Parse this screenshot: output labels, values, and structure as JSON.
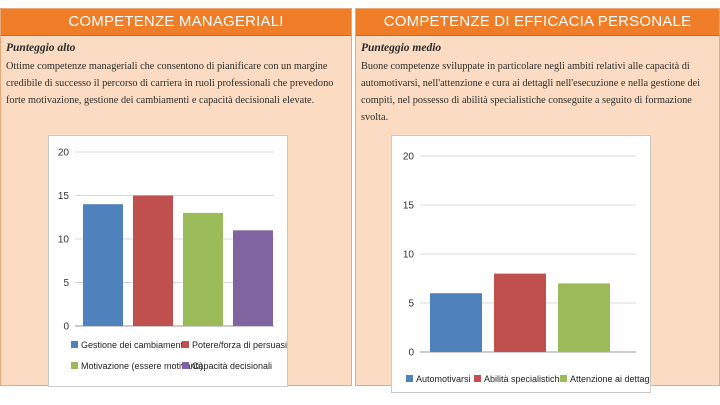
{
  "panels": [
    {
      "header": "COMPETENZE MANAGERIALI",
      "score_label": "Punteggio alto",
      "description": "Ottime competenze manageriali che consentono di pianificare con un margine credibile di successo il percorso di carriera in ruoli professionali che prevedono forte motivazione, gestione dei cambiamenti e capacità decisionali elevate."
    },
    {
      "header": "COMPETENZE DI EFFICACIA PERSONALE",
      "score_label": "Punteggio medio",
      "description": "Buone competenze sviluppate in particolare negli ambiti relativi alle capacità di automotivarsi, nell'attenzione e cura ai dettagli nell'esecuzione e nella gestione dei compiti, nel possesso di abilità specialistiche conseguite a seguito di formazione svolta."
    }
  ],
  "chart_data": [
    {
      "type": "bar",
      "categories": [
        "Gestione dei cambiamenti",
        "Potere/forza di persuasione",
        "Motivazione (essere motivanti)",
        "Capacità decisionali"
      ],
      "values": [
        14,
        15,
        13,
        11
      ],
      "colors": [
        "#4f81bd",
        "#c0504d",
        "#9bbb59",
        "#8064a2"
      ],
      "yticks": [
        0,
        5,
        10,
        15,
        20
      ],
      "ylim": [
        0,
        20
      ],
      "grid": true,
      "legend_position": "bottom"
    },
    {
      "type": "bar",
      "categories": [
        "Automotivarsi",
        "Abilità specialistiche",
        "Attenzione ai dettagli"
      ],
      "values": [
        6,
        8,
        7
      ],
      "colors": [
        "#4f81bd",
        "#c0504d",
        "#9bbb59"
      ],
      "yticks": [
        0,
        5,
        10,
        15,
        20
      ],
      "ylim": [
        0,
        20
      ],
      "grid": true,
      "legend_position": "bottom"
    }
  ]
}
